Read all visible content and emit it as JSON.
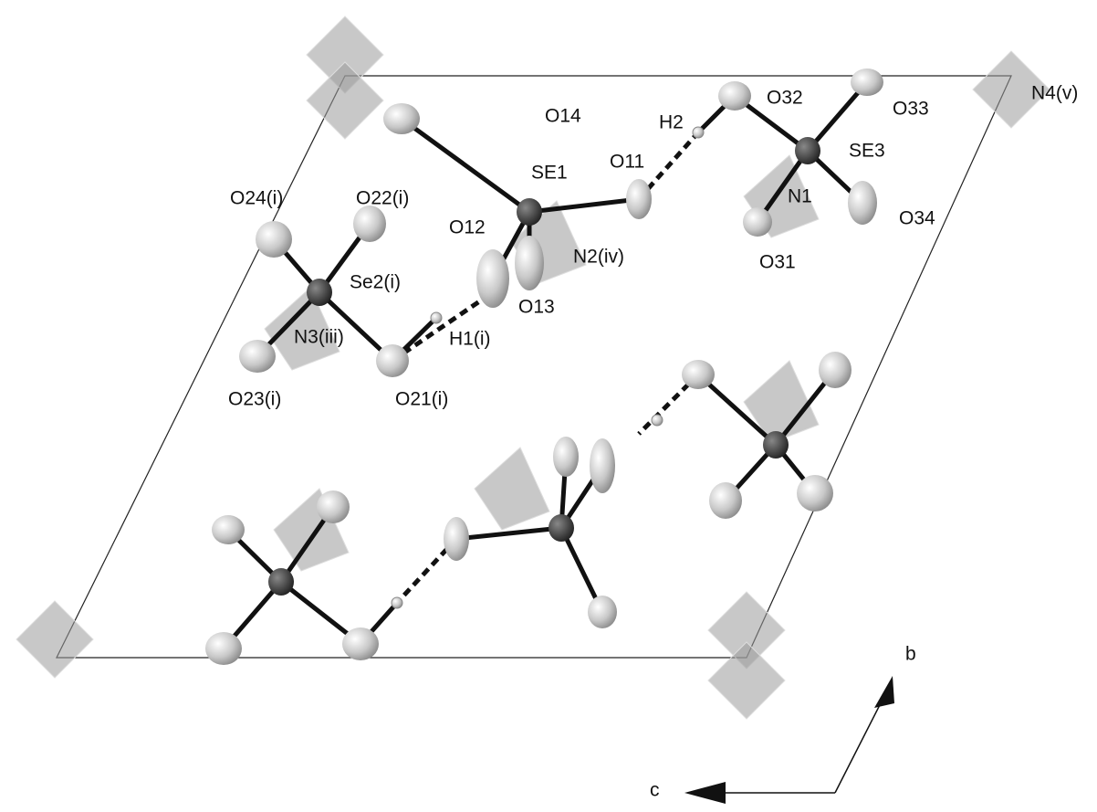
{
  "atom_labels": [
    "O14",
    "O32",
    "O33",
    "N4(v)",
    "H2",
    "SE3",
    "SE1",
    "O11",
    "O24(i)",
    "O22(i)",
    "N1",
    "O34",
    "O12",
    "N2(iv)",
    "O31",
    "Se2(i)",
    "O13",
    "N3(iii)",
    "H1(i)",
    "O23(i)",
    "O21(i)"
  ],
  "axes": {
    "b": "b",
    "c": "c"
  }
}
